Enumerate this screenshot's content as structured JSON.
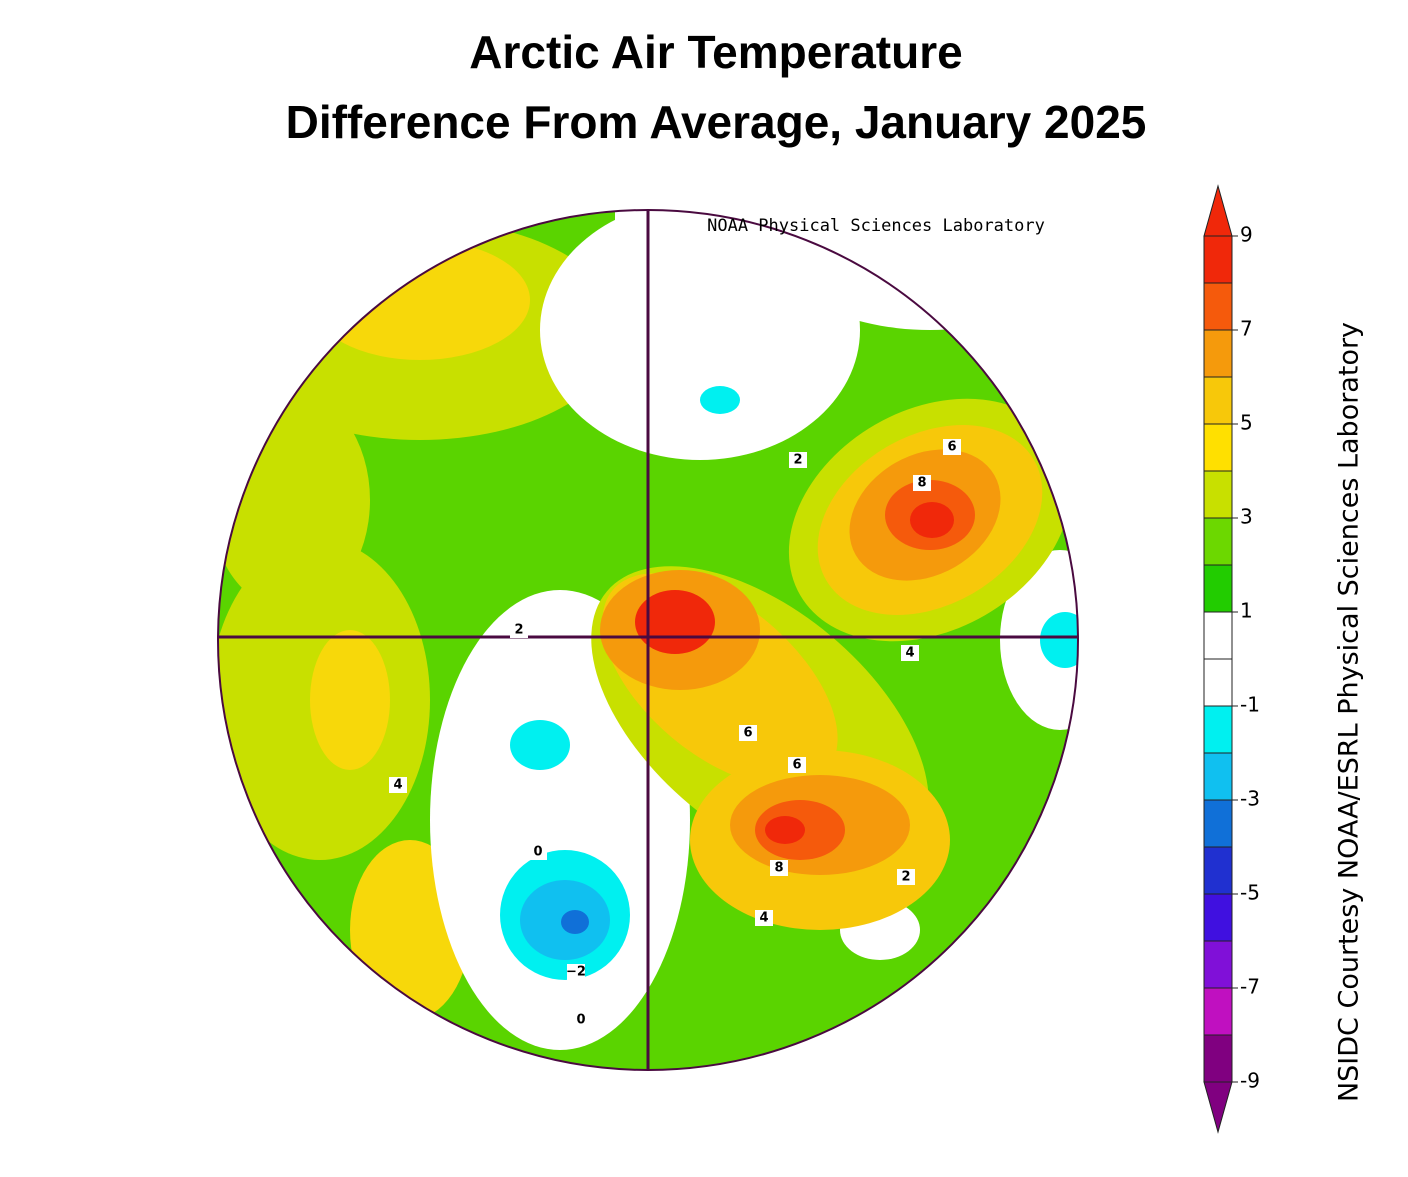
{
  "title": [
    "Arctic Air Temperature",
    "Difference From Average, January 2025"
  ],
  "map": {
    "credit": "NOAA Physical Sciences Laboratory",
    "contour_labels": [
      "2",
      "6",
      "8",
      "2",
      "4",
      "6",
      "6",
      "8",
      "2",
      "4",
      "4",
      "0",
      "−2",
      "0"
    ]
  },
  "colorbar": {
    "vlim": [
      -9,
      9
    ],
    "ticks": [
      9,
      7,
      5,
      3,
      1,
      -1,
      -3,
      -5,
      -7,
      -9
    ],
    "colors": [
      "#f0280a",
      "#f55a0c",
      "#f59a0c",
      "#f7c80a",
      "#ffe000",
      "#c8e000",
      "#6cd800",
      "#22cc00",
      "#ffffff",
      "#ffffff",
      "#00f0f0",
      "#10c0f0",
      "#1070d8",
      "#2030d0",
      "#4010e0",
      "#8010d8",
      "#c010c0",
      "#800080"
    ],
    "label": "NSIDC Courtesy NOAA/ESRL Physical Sciences Laboratory"
  }
}
